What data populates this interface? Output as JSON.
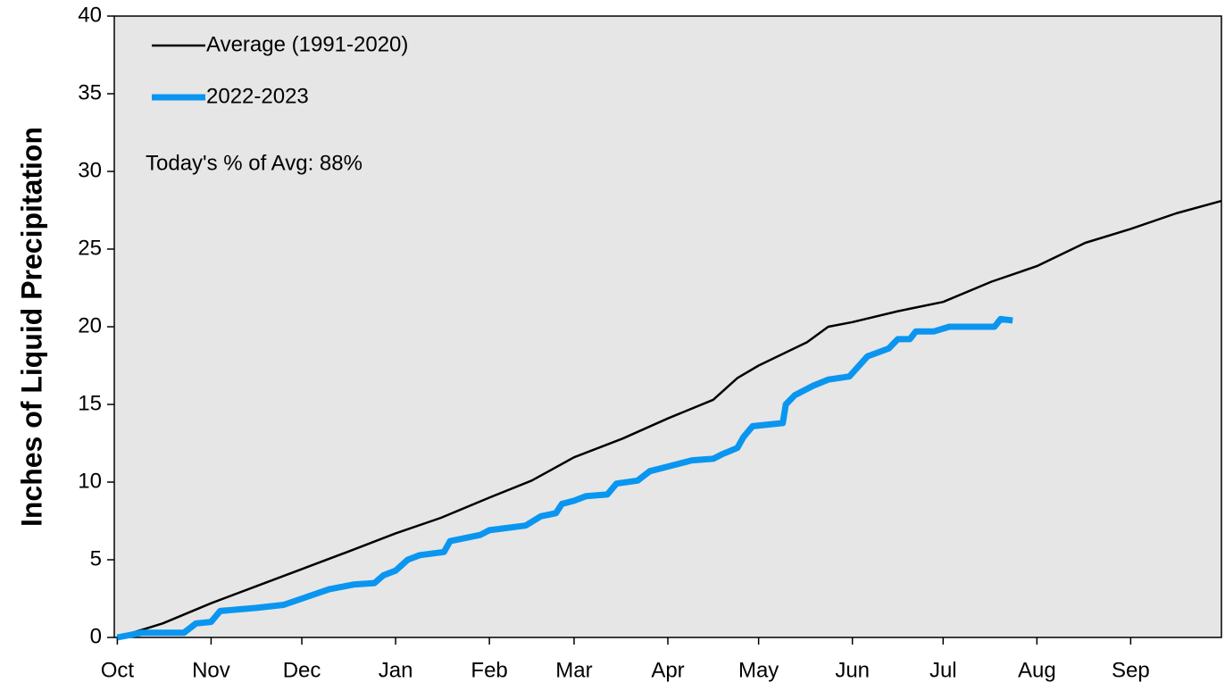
{
  "chart_data": {
    "type": "line",
    "y_label": "Inches of Liquid Precipitation",
    "annotation": "Today's % of Avg: 88%",
    "xlim": [
      -1,
      365
    ],
    "ylim": [
      0,
      40
    ],
    "xticks": [
      {
        "value": 0,
        "label": "Oct"
      },
      {
        "value": 31,
        "label": "Nov"
      },
      {
        "value": 61,
        "label": "Dec"
      },
      {
        "value": 92,
        "label": "Jan"
      },
      {
        "value": 123,
        "label": "Feb"
      },
      {
        "value": 151,
        "label": "Mar"
      },
      {
        "value": 182,
        "label": "Apr"
      },
      {
        "value": 212,
        "label": "May"
      },
      {
        "value": 243,
        "label": "Jun"
      },
      {
        "value": 273,
        "label": "Jul"
      },
      {
        "value": 304,
        "label": "Aug"
      },
      {
        "value": 335,
        "label": "Sep"
      }
    ],
    "yticks": [
      0,
      5,
      10,
      15,
      20,
      25,
      30,
      35,
      40
    ],
    "legend": "upper-left",
    "series": [
      {
        "name": "Average (1991-2020)",
        "color": "#000000",
        "width": 2.5,
        "x": [
          0,
          15,
          31,
          46,
          61,
          76,
          92,
          107,
          123,
          137,
          151,
          167,
          182,
          197,
          205,
          212,
          228,
          235,
          243,
          258,
          273,
          289,
          304,
          320,
          335,
          350,
          365
        ],
        "values": [
          0,
          0.9,
          2.2,
          3.3,
          4.4,
          5.5,
          6.7,
          7.7,
          9.0,
          10.1,
          11.6,
          12.8,
          14.1,
          15.3,
          16.7,
          17.5,
          19.0,
          20.0,
          20.3,
          21.0,
          21.6,
          22.9,
          23.9,
          25.4,
          26.3,
          27.3,
          28.1
        ]
      },
      {
        "name": "2022-2023",
        "color": "#0a96f0",
        "width": 7,
        "x": [
          0,
          8,
          22,
          26,
          31,
          34,
          46,
          55,
          61,
          70,
          78,
          85,
          88,
          92,
          96,
          100,
          108,
          110,
          120,
          123,
          135,
          140,
          145,
          147,
          151,
          155,
          162,
          165,
          172,
          176,
          182,
          190,
          197,
          200,
          205,
          207,
          210,
          220,
          221,
          224,
          230,
          235,
          242,
          248,
          255,
          258,
          262,
          264,
          270,
          275,
          282,
          290,
          292,
          296
        ],
        "values": [
          0,
          0.3,
          0.3,
          0.9,
          1.0,
          1.7,
          1.9,
          2.1,
          2.5,
          3.1,
          3.4,
          3.5,
          4.0,
          4.3,
          5.0,
          5.3,
          5.5,
          6.2,
          6.6,
          6.9,
          7.2,
          7.8,
          8.0,
          8.6,
          8.8,
          9.1,
          9.2,
          9.9,
          10.1,
          10.7,
          11.0,
          11.4,
          11.5,
          11.8,
          12.2,
          12.9,
          13.6,
          13.8,
          15.0,
          15.6,
          16.2,
          16.6,
          16.8,
          18.1,
          18.6,
          19.2,
          19.2,
          19.7,
          19.7,
          20.0,
          20.0,
          20.0,
          20.5,
          20.4
        ]
      }
    ]
  }
}
